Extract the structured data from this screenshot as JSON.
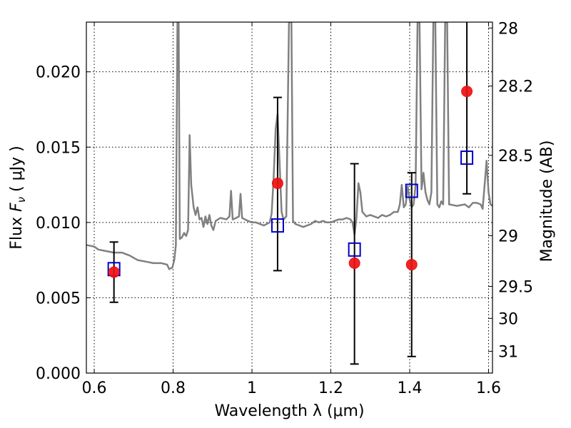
{
  "chart_data": {
    "type": "scatter",
    "xlabel": "Wavelength  λ (μm)",
    "ylabel": "Flux  F_ν  ( μJy )",
    "ylabel_parts": {
      "prefix": "Flux  ",
      "symbol": "F",
      "subscript": "ν",
      "suffix": "  ( μJy )"
    },
    "right_ylabel": "Magnitude (AB)",
    "xlim": [
      0.58,
      1.61
    ],
    "ylim": [
      0.0,
      0.0233
    ],
    "grid": true,
    "x_ticks": [
      {
        "value": 0.6,
        "label": "0.6"
      },
      {
        "value": 0.8,
        "label": "0.8"
      },
      {
        "value": 1.0,
        "label": "1"
      },
      {
        "value": 1.2,
        "label": "1.2"
      },
      {
        "value": 1.4,
        "label": "1.4"
      },
      {
        "value": 1.6,
        "label": "1.6"
      }
    ],
    "y_ticks": [
      {
        "value": 0.0,
        "label": "0.000"
      },
      {
        "value": 0.005,
        "label": "0.005"
      },
      {
        "value": 0.01,
        "label": "0.010"
      },
      {
        "value": 0.015,
        "label": "0.015"
      },
      {
        "value": 0.02,
        "label": "0.020"
      }
    ],
    "right_ticks": [
      {
        "value": 28,
        "label": "28"
      },
      {
        "value": 28.2,
        "label": "28.2"
      },
      {
        "value": 28.5,
        "label": "28.5"
      },
      {
        "value": 29,
        "label": "29"
      },
      {
        "value": 29.5,
        "label": "29.5"
      },
      {
        "value": 30,
        "label": "30"
      },
      {
        "value": 31,
        "label": "31"
      }
    ],
    "series": [
      {
        "kind": "model-spectrum",
        "color": "#808080",
        "points": [
          [
            0.58,
            0.0085
          ],
          [
            0.6,
            0.0084
          ],
          [
            0.61,
            0.0082
          ],
          [
            0.63,
            0.0081
          ],
          [
            0.65,
            0.008
          ],
          [
            0.67,
            0.008
          ],
          [
            0.69,
            0.0078
          ],
          [
            0.71,
            0.0075
          ],
          [
            0.73,
            0.0074
          ],
          [
            0.75,
            0.0073
          ],
          [
            0.77,
            0.0073
          ],
          [
            0.785,
            0.0072
          ],
          [
            0.79,
            0.0069
          ],
          [
            0.798,
            0.007
          ],
          [
            0.803,
            0.0075
          ],
          [
            0.807,
            0.0085
          ],
          [
            0.811,
            0.0233
          ],
          [
            0.814,
            0.0233
          ],
          [
            0.817,
            0.0089
          ],
          [
            0.822,
            0.009
          ],
          [
            0.828,
            0.0093
          ],
          [
            0.833,
            0.0091
          ],
          [
            0.838,
            0.0095
          ],
          [
            0.842,
            0.0158
          ],
          [
            0.846,
            0.0125
          ],
          [
            0.852,
            0.011
          ],
          [
            0.857,
            0.0105
          ],
          [
            0.862,
            0.011
          ],
          [
            0.867,
            0.0102
          ],
          [
            0.872,
            0.0103
          ],
          [
            0.877,
            0.0097
          ],
          [
            0.882,
            0.0104
          ],
          [
            0.887,
            0.0099
          ],
          [
            0.892,
            0.0105
          ],
          [
            0.897,
            0.0098
          ],
          [
            0.902,
            0.0095
          ],
          [
            0.908,
            0.0101
          ],
          [
            0.92,
            0.0103
          ],
          [
            0.935,
            0.0102
          ],
          [
            0.943,
            0.0104
          ],
          [
            0.947,
            0.0121
          ],
          [
            0.951,
            0.0102
          ],
          [
            0.96,
            0.0103
          ],
          [
            0.967,
            0.0104
          ],
          [
            0.971,
            0.0119
          ],
          [
            0.975,
            0.0103
          ],
          [
            0.99,
            0.0101
          ],
          [
            1.0,
            0.01
          ],
          [
            1.01,
            0.01
          ],
          [
            1.03,
            0.0098
          ],
          [
            1.045,
            0.01
          ],
          [
            1.05,
            0.0106
          ],
          [
            1.055,
            0.013
          ],
          [
            1.06,
            0.0162
          ],
          [
            1.065,
            0.0172
          ],
          [
            1.07,
            0.014
          ],
          [
            1.075,
            0.0107
          ],
          [
            1.08,
            0.0102
          ],
          [
            1.087,
            0.0104
          ],
          [
            1.094,
            0.0233
          ],
          [
            1.1,
            0.0233
          ],
          [
            1.104,
            0.0101
          ],
          [
            1.11,
            0.0099
          ],
          [
            1.12,
            0.0098
          ],
          [
            1.13,
            0.0097
          ],
          [
            1.14,
            0.0098
          ],
          [
            1.15,
            0.0099
          ],
          [
            1.16,
            0.0101
          ],
          [
            1.17,
            0.01
          ],
          [
            1.18,
            0.0101
          ],
          [
            1.19,
            0.01
          ],
          [
            1.2,
            0.01
          ],
          [
            1.21,
            0.0101
          ],
          [
            1.22,
            0.0102
          ],
          [
            1.23,
            0.0102
          ],
          [
            1.24,
            0.0103
          ],
          [
            1.25,
            0.0102
          ],
          [
            1.255,
            0.01
          ],
          [
            1.26,
            0.0092
          ],
          [
            1.265,
            0.0103
          ],
          [
            1.27,
            0.0126
          ],
          [
            1.275,
            0.012
          ],
          [
            1.28,
            0.0107
          ],
          [
            1.29,
            0.0104
          ],
          [
            1.3,
            0.0105
          ],
          [
            1.31,
            0.0104
          ],
          [
            1.32,
            0.0103
          ],
          [
            1.33,
            0.0105
          ],
          [
            1.34,
            0.0104
          ],
          [
            1.35,
            0.0105
          ],
          [
            1.36,
            0.0107
          ],
          [
            1.37,
            0.0107
          ],
          [
            1.375,
            0.0112
          ],
          [
            1.38,
            0.0125
          ],
          [
            1.385,
            0.011
          ],
          [
            1.39,
            0.0112
          ],
          [
            1.395,
            0.0124
          ],
          [
            1.4,
            0.0115
          ],
          [
            1.405,
            0.011
          ],
          [
            1.41,
            0.0112
          ],
          [
            1.415,
            0.0125
          ],
          [
            1.42,
            0.0233
          ],
          [
            1.425,
            0.0233
          ],
          [
            1.43,
            0.0122
          ],
          [
            1.435,
            0.0133
          ],
          [
            1.44,
            0.012
          ],
          [
            1.445,
            0.0115
          ],
          [
            1.45,
            0.0112
          ],
          [
            1.455,
            0.012
          ],
          [
            1.46,
            0.0233
          ],
          [
            1.465,
            0.0233
          ],
          [
            1.47,
            0.0112
          ],
          [
            1.475,
            0.011
          ],
          [
            1.48,
            0.0114
          ],
          [
            1.485,
            0.0112
          ],
          [
            1.49,
            0.0233
          ],
          [
            1.495,
            0.0233
          ],
          [
            1.5,
            0.0112
          ],
          [
            1.52,
            0.0111
          ],
          [
            1.54,
            0.0112
          ],
          [
            1.55,
            0.011
          ],
          [
            1.56,
            0.0113
          ],
          [
            1.57,
            0.0113
          ],
          [
            1.58,
            0.0112
          ],
          [
            1.585,
            0.0109
          ],
          [
            1.59,
            0.0125
          ],
          [
            1.595,
            0.0141
          ],
          [
            1.6,
            0.012
          ],
          [
            1.605,
            0.0112
          ],
          [
            1.61,
            0.0111
          ]
        ]
      },
      {
        "kind": "observed",
        "marker": "circle",
        "color": "#ee1111",
        "points": [
          {
            "x": 0.65,
            "y": 0.0067,
            "err_low": 0.0047,
            "err_high": 0.0087
          },
          {
            "x": 1.065,
            "y": 0.0126,
            "err_low": 0.0068,
            "err_high": 0.0183
          },
          {
            "x": 1.26,
            "y": 0.0073,
            "err_low": 0.0006,
            "err_high": 0.0139
          },
          {
            "x": 1.405,
            "y": 0.0072,
            "err_low": 0.0011,
            "err_high": 0.0133
          },
          {
            "x": 1.545,
            "y": 0.0187,
            "err_low": 0.0119,
            "err_high": 0.0233
          }
        ]
      },
      {
        "kind": "model-photometry",
        "marker": "square",
        "color": "#0000cc",
        "points": [
          {
            "x": 0.65,
            "y": 0.0069
          },
          {
            "x": 1.065,
            "y": 0.0098
          },
          {
            "x": 1.26,
            "y": 0.0082
          },
          {
            "x": 1.405,
            "y": 0.0121
          },
          {
            "x": 1.545,
            "y": 0.0143
          }
        ]
      }
    ]
  }
}
